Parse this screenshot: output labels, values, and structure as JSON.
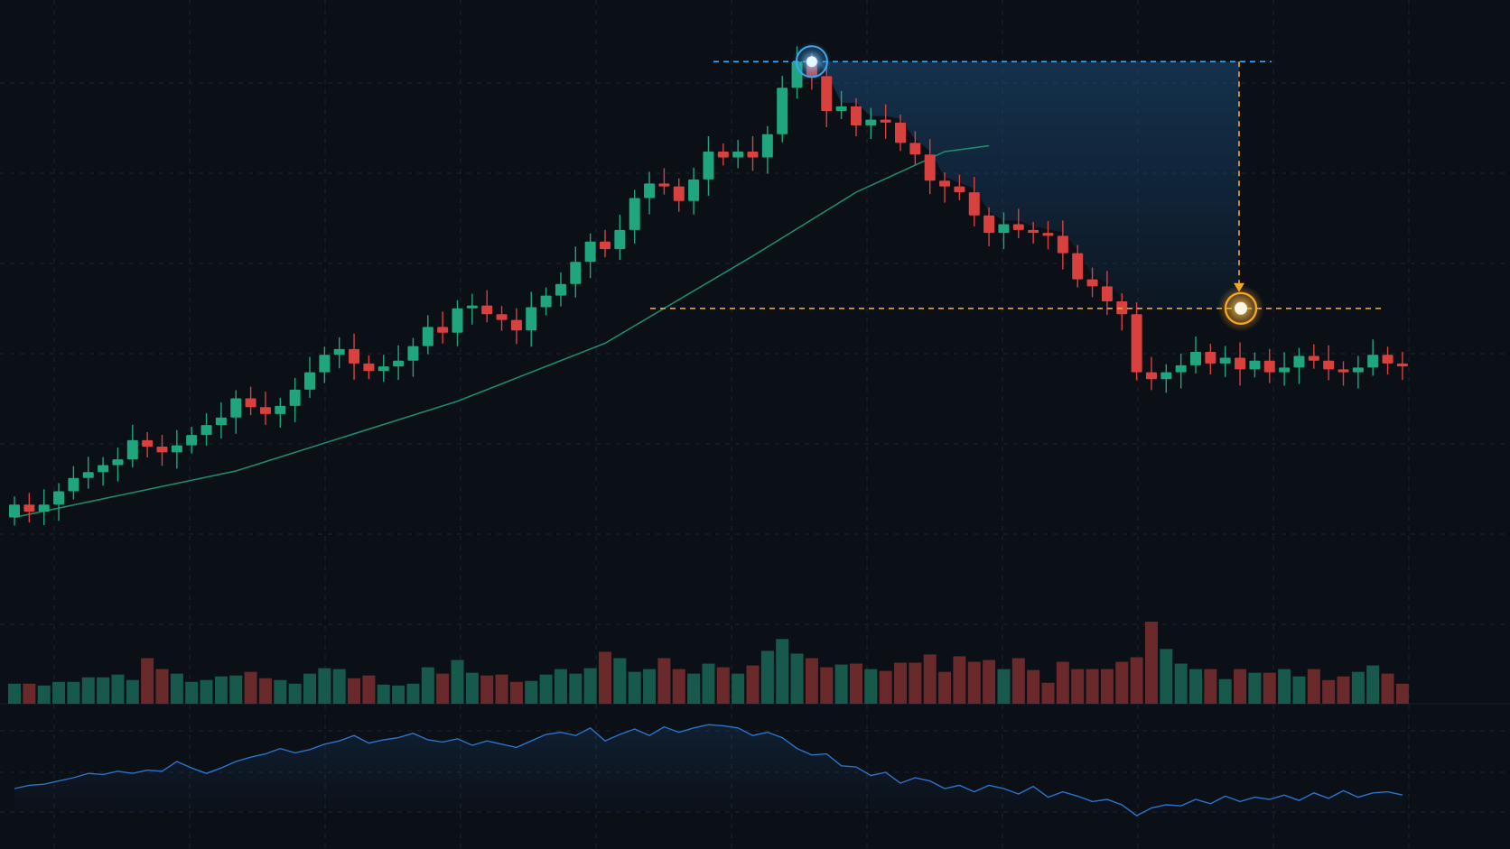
{
  "chart_data": {
    "type": "candlestick",
    "grid": true,
    "colors": {
      "background": "#0b0f16",
      "grid": "#1c2430",
      "up": "#1fa67f",
      "down": "#d9413f",
      "ma": "#1e8a6a",
      "volume_up": "#17594a",
      "volume_down": "#6a2a2c",
      "oscillator": "#2c73c9",
      "peak_marker": "#3ea6f0",
      "target_marker": "#f5a623",
      "shade": "#1b4d7a"
    },
    "candles": [
      [
        100,
        102.2
      ],
      [
        102.2,
        101
      ],
      [
        101,
        102.2
      ],
      [
        102.2,
        104.5
      ],
      [
        104.5,
        106.8
      ],
      [
        106.8,
        107.8
      ],
      [
        107.8,
        109.0
      ],
      [
        109.0,
        110.0
      ],
      [
        110.0,
        113.3
      ],
      [
        113.3,
        112.2
      ],
      [
        112.2,
        111.2
      ],
      [
        111.2,
        112.4
      ],
      [
        112.4,
        114.2
      ],
      [
        114.2,
        115.9
      ],
      [
        115.9,
        117.2
      ],
      [
        117.2,
        120.5
      ],
      [
        120.5,
        119.0
      ],
      [
        119.0,
        117.8
      ],
      [
        117.8,
        119.2
      ],
      [
        119.2,
        122.0
      ],
      [
        122.0,
        125.0
      ],
      [
        125.0,
        128.0
      ],
      [
        128.0,
        129.0
      ],
      [
        129.0,
        126.5
      ],
      [
        126.5,
        125.2
      ],
      [
        125.2,
        126.0
      ],
      [
        126.0,
        127.0
      ],
      [
        127.0,
        129.5
      ],
      [
        129.5,
        132.8
      ],
      [
        132.8,
        131.8
      ],
      [
        131.8,
        136.0
      ],
      [
        136.0,
        136.5
      ],
      [
        136.5,
        135.0
      ],
      [
        135.0,
        134.0
      ],
      [
        134.0,
        132.2
      ],
      [
        132.2,
        136.2
      ],
      [
        136.2,
        138.2
      ],
      [
        138.2,
        140.2
      ],
      [
        140.2,
        144.0
      ],
      [
        144.0,
        147.5
      ],
      [
        147.5,
        146.2
      ],
      [
        146.2,
        149.5
      ],
      [
        149.5,
        155.0
      ],
      [
        155.0,
        157.5
      ],
      [
        157.5,
        157.0
      ],
      [
        157.0,
        154.5
      ],
      [
        154.5,
        158.2
      ],
      [
        158.2,
        163.0
      ],
      [
        163.0,
        162.0
      ],
      [
        162.0,
        163.0
      ],
      [
        163.0,
        162.0
      ],
      [
        162.0,
        166.0
      ],
      [
        166.0,
        174.0
      ],
      [
        174.0,
        178.5
      ],
      [
        178.5,
        176.0
      ],
      [
        176.0,
        170.0
      ],
      [
        170.0,
        170.8
      ],
      [
        170.8,
        167.5
      ],
      [
        167.5,
        168.5
      ],
      [
        168.5,
        168.0
      ],
      [
        168.0,
        164.5
      ],
      [
        164.5,
        162.5
      ],
      [
        162.5,
        158.0
      ],
      [
        158.0,
        157.0
      ],
      [
        157.0,
        156.0
      ],
      [
        156.0,
        152.0
      ],
      [
        152.0,
        149.0
      ],
      [
        149.0,
        150.5
      ],
      [
        150.5,
        149.5
      ],
      [
        149.5,
        149.0
      ],
      [
        149.0,
        148.5
      ],
      [
        148.5,
        145.5
      ],
      [
        145.5,
        141.0
      ],
      [
        141.0,
        139.8
      ],
      [
        139.8,
        137.2
      ],
      [
        137.2,
        135.0
      ],
      [
        135.0,
        125.0
      ],
      [
        125.0,
        123.8
      ],
      [
        123.8,
        125.0
      ],
      [
        125.0,
        126.2
      ],
      [
        126.2,
        128.5
      ],
      [
        128.5,
        126.5
      ],
      [
        126.5,
        127.5
      ],
      [
        127.5,
        125.5
      ],
      [
        125.5,
        127.0
      ],
      [
        127.0,
        125.0
      ],
      [
        125.0,
        125.8
      ],
      [
        125.8,
        127.8
      ],
      [
        127.8,
        127.0
      ],
      [
        127.0,
        125.5
      ],
      [
        125.5,
        125.0
      ],
      [
        125.0,
        125.8
      ],
      [
        125.8,
        128.0
      ],
      [
        128.0,
        126.5
      ],
      [
        126.5,
        126.0
      ]
    ],
    "volume": [
      22,
      22,
      20,
      24,
      24,
      29,
      29,
      32,
      26,
      50,
      38,
      33,
      24,
      26,
      30,
      31,
      35,
      28,
      26,
      22,
      33,
      39,
      38,
      28,
      31,
      21,
      20,
      22,
      40,
      33,
      48,
      34,
      31,
      32,
      24,
      25,
      32,
      38,
      33,
      39,
      57,
      50,
      35,
      38,
      50,
      38,
      33,
      44,
      40,
      33,
      42,
      58,
      71,
      55,
      50,
      40,
      43,
      44,
      38,
      36,
      45,
      45,
      54,
      35,
      52,
      46,
      48,
      38,
      50,
      37,
      23,
      46,
      38,
      38,
      38,
      46,
      51,
      90,
      60,
      44,
      38,
      38,
      27,
      38,
      34,
      34,
      38,
      30,
      38,
      26,
      30,
      35,
      42,
      33,
      22
    ],
    "ma_line": [
      [
        0,
        100
      ],
      [
        15,
        108
      ],
      [
        30,
        120
      ],
      [
        40,
        130
      ],
      [
        50,
        145
      ],
      [
        57,
        156
      ],
      [
        63,
        163
      ],
      [
        66,
        164
      ]
    ],
    "oscillator": [
      0.3,
      0.33,
      0.34,
      0.37,
      0.4,
      0.44,
      0.43,
      0.46,
      0.44,
      0.47,
      0.46,
      0.55,
      0.49,
      0.44,
      0.49,
      0.55,
      0.59,
      0.62,
      0.67,
      0.63,
      0.66,
      0.71,
      0.74,
      0.79,
      0.72,
      0.75,
      0.77,
      0.81,
      0.75,
      0.73,
      0.76,
      0.7,
      0.74,
      0.71,
      0.68,
      0.74,
      0.8,
      0.82,
      0.79,
      0.86,
      0.74,
      0.8,
      0.85,
      0.79,
      0.87,
      0.82,
      0.86,
      0.89,
      0.88,
      0.86,
      0.79,
      0.82,
      0.77,
      0.67,
      0.61,
      0.62,
      0.51,
      0.5,
      0.42,
      0.45,
      0.35,
      0.4,
      0.37,
      0.3,
      0.33,
      0.27,
      0.33,
      0.3,
      0.25,
      0.32,
      0.22,
      0.27,
      0.23,
      0.18,
      0.2,
      0.15,
      0.05,
      0.12,
      0.15,
      0.14,
      0.2,
      0.16,
      0.23,
      0.18,
      0.22,
      0.2,
      0.24,
      0.19,
      0.26,
      0.21,
      0.28,
      0.22,
      0.26,
      0.27,
      0.24
    ],
    "peak": {
      "index": 54,
      "price": 178.5
    },
    "target": {
      "index": 76,
      "price": 136
    },
    "price_range": [
      85,
      186
    ],
    "annotations": {
      "peak_line": "dashed-blue",
      "target_line": "dashed-orange",
      "drop_arrow": "down"
    }
  }
}
